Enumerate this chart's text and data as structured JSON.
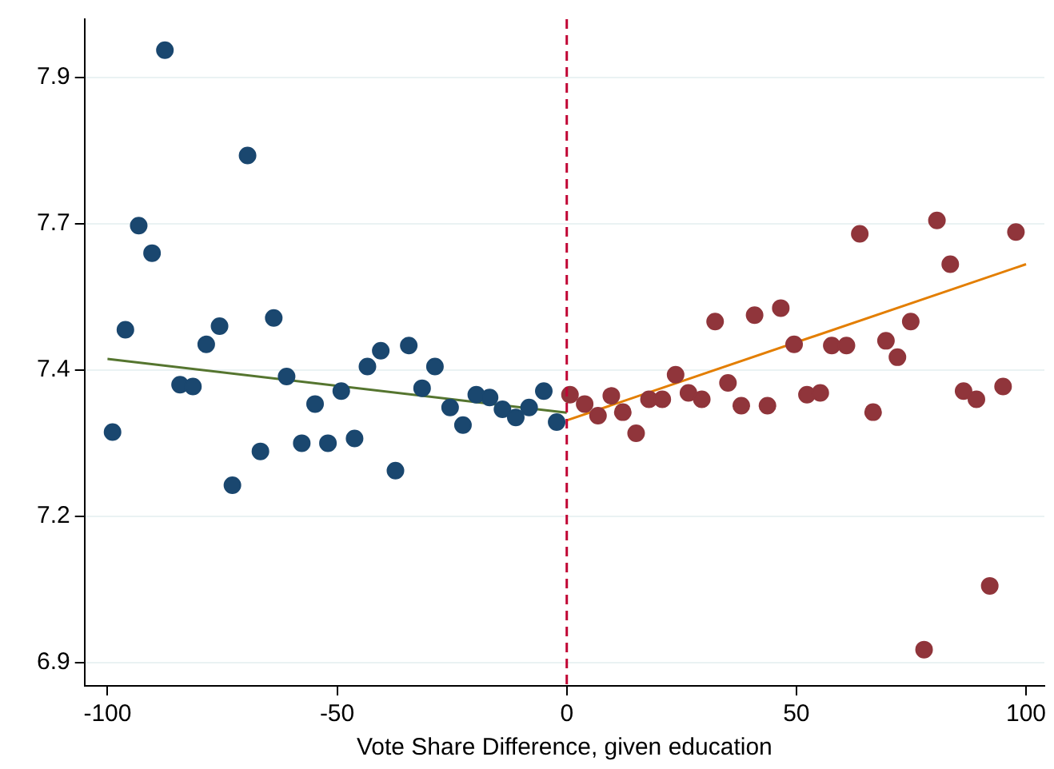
{
  "chart_data": {
    "type": "scatter",
    "xlabel": "Vote Share Difference, given education",
    "xlim": [
      -105,
      104
    ],
    "xticks": [
      -100,
      -50,
      0,
      50,
      100
    ],
    "ylim": [
      6.86,
      8.0
    ],
    "yticks": [
      {
        "value": 6.9,
        "label": "6.9"
      },
      {
        "value": 7.15,
        "label": "7.2"
      },
      {
        "value": 7.4,
        "label": "7.4"
      },
      {
        "value": 7.65,
        "label": "7.7"
      },
      {
        "value": 7.9,
        "label": "7.9"
      }
    ],
    "grid": "y",
    "legend": false,
    "marker": "circle",
    "ref_lines": [
      {
        "axis": "x",
        "value": 0,
        "color": "#c10534",
        "line_style": "dashed"
      }
    ],
    "series": [
      {
        "color": "#1a476f",
        "x": [
          -98.9,
          -96.1,
          -93.2,
          -90.3,
          -87.5,
          -84.2,
          -81.4,
          -78.5,
          -75.6,
          -72.8,
          -69.5,
          -66.7,
          -63.8,
          -61.0,
          -57.7,
          -54.8,
          -52.0,
          -49.1,
          -46.2,
          -43.4,
          -40.5,
          -37.3,
          -34.4,
          -31.5,
          -28.7,
          -25.4,
          -22.6,
          -19.7,
          -16.8,
          -14.0,
          -11.1,
          -8.2,
          -5.0,
          -2.2
        ],
        "values": [
          7.294,
          7.469,
          7.647,
          7.6,
          7.947,
          7.375,
          7.372,
          7.444,
          7.475,
          7.203,
          7.767,
          7.261,
          7.489,
          7.389,
          7.275,
          7.342,
          7.275,
          7.364,
          7.283,
          7.406,
          7.433,
          7.228,
          7.442,
          7.369,
          7.406,
          7.336,
          7.306,
          7.358,
          7.353,
          7.333,
          7.319,
          7.336,
          7.364,
          7.311
        ]
      },
      {
        "color": "#90353b",
        "x": [
          0.7,
          3.9,
          6.8,
          9.7,
          12.2,
          15.1,
          17.9,
          20.8,
          23.7,
          26.5,
          29.4,
          32.3,
          35.1,
          38.0,
          40.9,
          43.7,
          46.6,
          49.5,
          52.3,
          55.2,
          57.7,
          60.9,
          63.8,
          66.7,
          69.5,
          72.0,
          74.9,
          77.8,
          80.6,
          83.5,
          86.4,
          89.2,
          92.1,
          95.0,
          97.8
        ],
        "values": [
          7.358,
          7.342,
          7.322,
          7.356,
          7.328,
          7.292,
          7.35,
          7.35,
          7.392,
          7.361,
          7.35,
          7.483,
          7.378,
          7.339,
          7.494,
          7.339,
          7.506,
          7.444,
          7.358,
          7.361,
          7.442,
          7.442,
          7.633,
          7.328,
          7.45,
          7.422,
          7.483,
          6.922,
          7.656,
          7.581,
          7.364,
          7.35,
          7.031,
          7.372,
          7.636
        ]
      },
      {
        "type": "line",
        "marker": "none",
        "color": "#55752f",
        "x": [
          -100,
          0
        ],
        "values": [
          7.419,
          7.327
        ]
      },
      {
        "type": "line",
        "marker": "none",
        "color": "#e37e00",
        "x": [
          0,
          100
        ],
        "values": [
          7.314,
          7.581
        ]
      }
    ]
  }
}
